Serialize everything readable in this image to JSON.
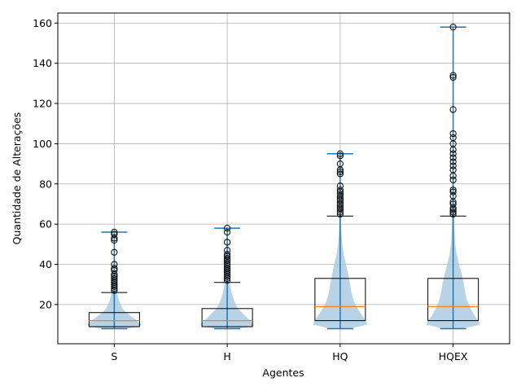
{
  "chart_data": {
    "type": "violin+box",
    "title": "",
    "xlabel": "Agentes",
    "ylabel": "Quantidade de Alterações",
    "ylim": [
      0.5,
      165
    ],
    "yticks": [
      20,
      40,
      60,
      80,
      100,
      120,
      140,
      160
    ],
    "categories": [
      "S",
      "H",
      "HQ",
      "HQEX"
    ],
    "grid": true,
    "colors": {
      "violin_fill": "#a6c8e0",
      "violin_line": "#1f77b4",
      "box": "#000000",
      "median": "#ff7f0e",
      "grid": "#b0b0b0"
    },
    "boxes": [
      {
        "category": "S",
        "min": 8,
        "q1": 9,
        "median": 12,
        "q3": 16,
        "whisker_high": 26,
        "max": 56,
        "outliers": [
          27,
          28,
          29,
          30,
          31,
          32,
          33,
          34,
          35,
          37,
          38,
          40,
          46,
          52,
          53,
          55,
          56
        ]
      },
      {
        "category": "H",
        "min": 8,
        "q1": 9,
        "median": 12,
        "q3": 18,
        "whisker_high": 31,
        "max": 58,
        "outliers": [
          32,
          33,
          34,
          35,
          36,
          37,
          38,
          39,
          40,
          41,
          42,
          43,
          44,
          45,
          47,
          51,
          56,
          58
        ]
      },
      {
        "category": "HQ",
        "min": 8,
        "q1": 12,
        "median": 19,
        "q3": 33,
        "whisker_high": 64,
        "max": 95,
        "outliers": [
          65,
          66,
          67,
          68,
          69,
          70,
          71,
          72,
          73,
          74,
          75,
          76,
          77,
          79,
          85,
          86,
          87,
          90,
          94,
          95
        ]
      },
      {
        "category": "HQEX",
        "min": 8,
        "q1": 12,
        "median": 19,
        "q3": 33,
        "whisker_high": 64,
        "max": 158,
        "outliers": [
          65,
          66,
          67,
          68,
          70,
          71,
          74,
          76,
          77,
          82,
          84,
          87,
          89,
          91,
          93,
          95,
          97,
          100,
          103,
          105,
          117,
          133,
          134,
          158
        ]
      }
    ],
    "violin_density": [
      [
        [
          8,
          0.45
        ],
        [
          9,
          0.95
        ],
        [
          10,
          1.0
        ],
        [
          11,
          0.9
        ],
        [
          12,
          0.85
        ],
        [
          14,
          0.65
        ],
        [
          16,
          0.45
        ],
        [
          18,
          0.3
        ],
        [
          22,
          0.17
        ],
        [
          26,
          0.1
        ],
        [
          30,
          0.07
        ],
        [
          34,
          0.045
        ],
        [
          40,
          0.03
        ],
        [
          46,
          0.02
        ],
        [
          52,
          0.015
        ],
        [
          56,
          0.01
        ]
      ],
      [
        [
          8,
          0.4
        ],
        [
          9,
          0.9
        ],
        [
          10,
          1.0
        ],
        [
          12,
          0.85
        ],
        [
          14,
          0.7
        ],
        [
          16,
          0.55
        ],
        [
          18,
          0.4
        ],
        [
          22,
          0.25
        ],
        [
          26,
          0.16
        ],
        [
          30,
          0.1
        ],
        [
          34,
          0.07
        ],
        [
          40,
          0.05
        ],
        [
          46,
          0.03
        ],
        [
          52,
          0.02
        ],
        [
          58,
          0.01
        ]
      ],
      [
        [
          8,
          0.35
        ],
        [
          10,
          1.0
        ],
        [
          12,
          0.95
        ],
        [
          14,
          0.85
        ],
        [
          18,
          0.65
        ],
        [
          22,
          0.5
        ],
        [
          26,
          0.42
        ],
        [
          30,
          0.37
        ],
        [
          35,
          0.3
        ],
        [
          40,
          0.22
        ],
        [
          45,
          0.13
        ],
        [
          50,
          0.08
        ],
        [
          55,
          0.05
        ],
        [
          60,
          0.035
        ],
        [
          65,
          0.025
        ],
        [
          70,
          0.02
        ],
        [
          80,
          0.012
        ],
        [
          90,
          0.008
        ],
        [
          95,
          0.006
        ]
      ],
      [
        [
          8,
          0.35
        ],
        [
          10,
          1.0
        ],
        [
          12,
          0.95
        ],
        [
          14,
          0.82
        ],
        [
          18,
          0.65
        ],
        [
          22,
          0.52
        ],
        [
          26,
          0.45
        ],
        [
          30,
          0.4
        ],
        [
          35,
          0.32
        ],
        [
          40,
          0.22
        ],
        [
          45,
          0.13
        ],
        [
          50,
          0.08
        ],
        [
          55,
          0.06
        ],
        [
          60,
          0.045
        ],
        [
          70,
          0.03
        ],
        [
          80,
          0.022
        ],
        [
          90,
          0.018
        ],
        [
          100,
          0.014
        ],
        [
          110,
          0.01
        ],
        [
          120,
          0.008
        ],
        [
          135,
          0.006
        ],
        [
          150,
          0.005
        ],
        [
          158,
          0.004
        ]
      ]
    ]
  }
}
